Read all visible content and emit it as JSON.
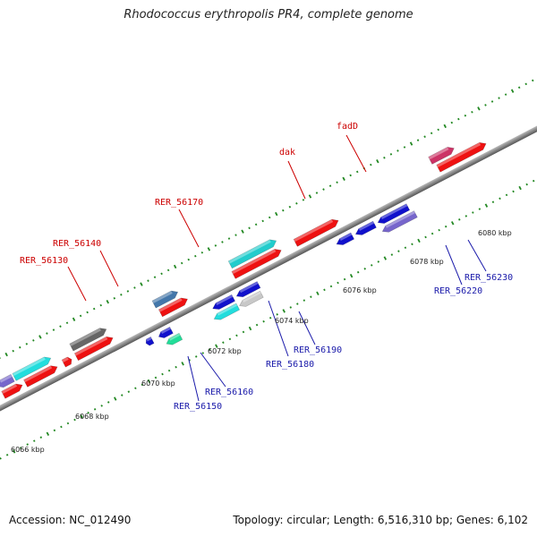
{
  "title": "Rhodococcus erythropolis PR4, complete genome",
  "footer": {
    "accession": "Accession: NC_012490",
    "topology": "Topology: circular; Length: 6,516,310 bp; Genes: 6,102"
  },
  "colors": {
    "forward_label": "#cc0000",
    "reverse_label": "#1a1aaa",
    "backbone": "#888888",
    "tick": "#228822"
  },
  "axis_labels": [
    "6066 kbp",
    "6068 kbp",
    "6070 kbp",
    "6072 kbp",
    "6074 kbp",
    "6076 kbp",
    "6078 kbp",
    "6080 kbp"
  ],
  "gene_labels": [
    {
      "text": "fadD",
      "strand": "forward"
    },
    {
      "text": "dak",
      "strand": "forward"
    },
    {
      "text": "RER_56170",
      "strand": "forward"
    },
    {
      "text": "RER_56140",
      "strand": "forward"
    },
    {
      "text": "RER_56130",
      "strand": "forward"
    },
    {
      "text": "RER_56230",
      "strand": "reverse"
    },
    {
      "text": "RER_56220",
      "strand": "reverse"
    },
    {
      "text": "RER_56190",
      "strand": "reverse"
    },
    {
      "text": "RER_56180",
      "strand": "reverse"
    },
    {
      "text": "RER_56160",
      "strand": "reverse"
    },
    {
      "text": "RER_56150",
      "strand": "reverse"
    }
  ]
}
